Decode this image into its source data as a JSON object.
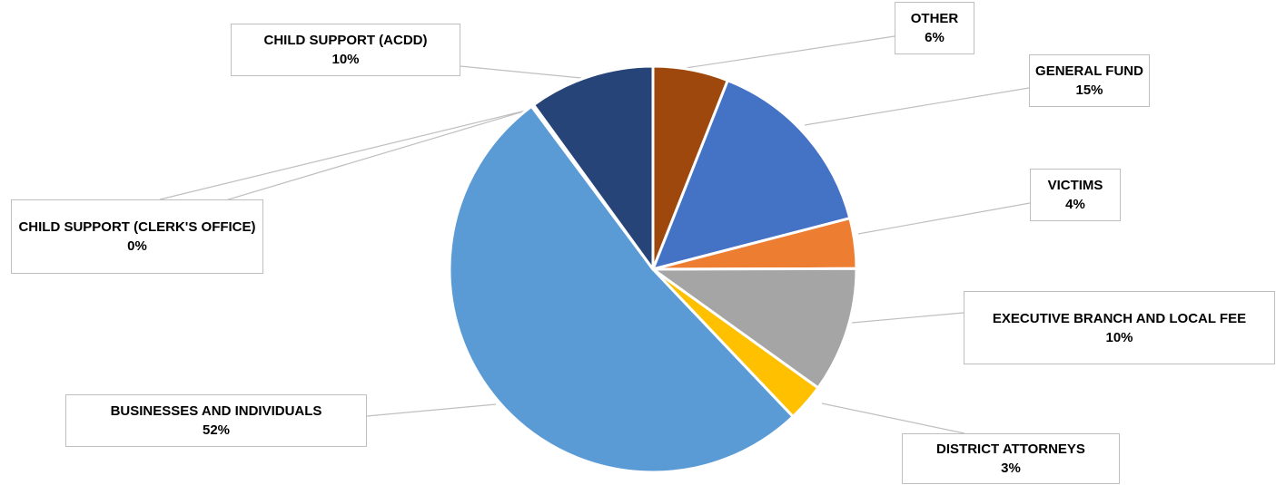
{
  "chart_data": {
    "type": "pie",
    "start_angle_deg": 0,
    "direction": "clockwise",
    "slices": [
      {
        "key": "other",
        "label": "OTHER",
        "value": 6,
        "value_label": "6%",
        "color": "#9E480E"
      },
      {
        "key": "general_fund",
        "label": "GENERAL FUND",
        "value": 15,
        "value_label": "15%",
        "color": "#4472C4"
      },
      {
        "key": "victims",
        "label": "VICTIMS",
        "value": 4,
        "value_label": "4%",
        "color": "#ED7D31"
      },
      {
        "key": "executive_branch",
        "label": "EXECUTIVE BRANCH AND LOCAL FEE",
        "value": 10,
        "value_label": "10%",
        "color": "#A5A5A5"
      },
      {
        "key": "district_attorneys",
        "label": "DISTRICT ATTORNEYS",
        "value": 3,
        "value_label": "3%",
        "color": "#FFC000"
      },
      {
        "key": "businesses",
        "label": "BUSINESSES AND INDIVIDUALS",
        "value": 52,
        "value_label": "52%",
        "color": "#5B9BD5"
      },
      {
        "key": "child_support_clerk",
        "label": "CHILD SUPPORT (CLERK'S OFFICE)",
        "value": 0.2,
        "value_label": "0%",
        "color": "#264478"
      },
      {
        "key": "child_support_acdd",
        "label": "CHILD SUPPORT (ACDD)",
        "value": 10,
        "value_label": "10%",
        "color": "#264478"
      }
    ]
  }
}
